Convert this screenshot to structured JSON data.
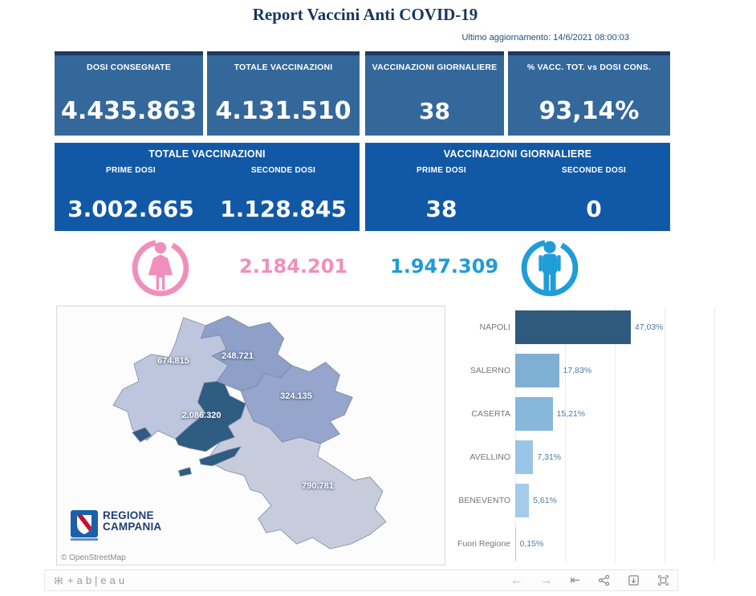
{
  "header": {
    "title": "Report Vaccini Anti COVID-19",
    "last_update": "Ultimo aggiornamento: 14/6/2021  08:00:03"
  },
  "kpis": [
    {
      "label": "DOSI  CONSEGNATE",
      "value": "4.435.863"
    },
    {
      "label": "TOTALE VACCINAZIONI",
      "value": "4.131.510"
    },
    {
      "label": "VACCINAZIONI GIORNALIERE",
      "value": "38"
    },
    {
      "label": "% VACC. TOT. vs DOSI CONS.",
      "value": "93,14%"
    }
  ],
  "panels": [
    {
      "title": "TOTALE VACCINAZIONI",
      "columns": [
        {
          "label": "PRIME DOSI",
          "value": "3.002.665"
        },
        {
          "label": "SECONDE DOSI",
          "value": "1.128.845"
        }
      ]
    },
    {
      "title": "VACCINAZIONI GIORNALIERE",
      "columns": [
        {
          "label": "PRIME DOSI",
          "value": "38"
        },
        {
          "label": "SECONDE DOSI",
          "value": "0"
        }
      ]
    }
  ],
  "gender": {
    "female_value": "2.184.201",
    "male_value": "1.947.309",
    "female_color": "#F08FBC",
    "male_color": "#209CD8"
  },
  "map": {
    "attribution": "© OpenStreetMap",
    "logo": {
      "line1": "REGIONE",
      "line2": "CAMPANIA"
    },
    "regions": [
      {
        "name": "Caserta",
        "value": "674.815",
        "color": "#BDC6DD"
      },
      {
        "name": "Benevento",
        "value": "248.721",
        "color": "#8E9FC8"
      },
      {
        "name": "Avellino",
        "value": "324.135",
        "color": "#95A5CC"
      },
      {
        "name": "Salerno",
        "value": "790.781",
        "color": "#C6CCDB"
      },
      {
        "name": "Napoli",
        "value": "2.086.320",
        "color": "#2F5C81"
      }
    ]
  },
  "chart_data": {
    "type": "bar",
    "orientation": "horizontal",
    "categories": [
      "NAPOLI",
      "SALERNO",
      "CASERTA",
      "AVELLINO",
      "BENEVENTO",
      "Fuori Regione"
    ],
    "values": [
      47.03,
      17.83,
      15.21,
      7.31,
      5.61,
      0.15
    ],
    "value_labels": [
      "47,03%",
      "17,83%",
      "15,21%",
      "7,31%",
      "5,61%",
      "0,15%"
    ],
    "bar_colors": [
      "#2E5A7E",
      "#7FAFD3",
      "#88B7DC",
      "#9BC5E6",
      "#A4CCEA",
      "#A4CCEA"
    ],
    "xlim": [
      0,
      80
    ],
    "gridline_interval_pct": 20,
    "legend": false,
    "ylabel": "",
    "xlabel": ""
  },
  "footer": {
    "logo_text": "+ab|eau"
  }
}
